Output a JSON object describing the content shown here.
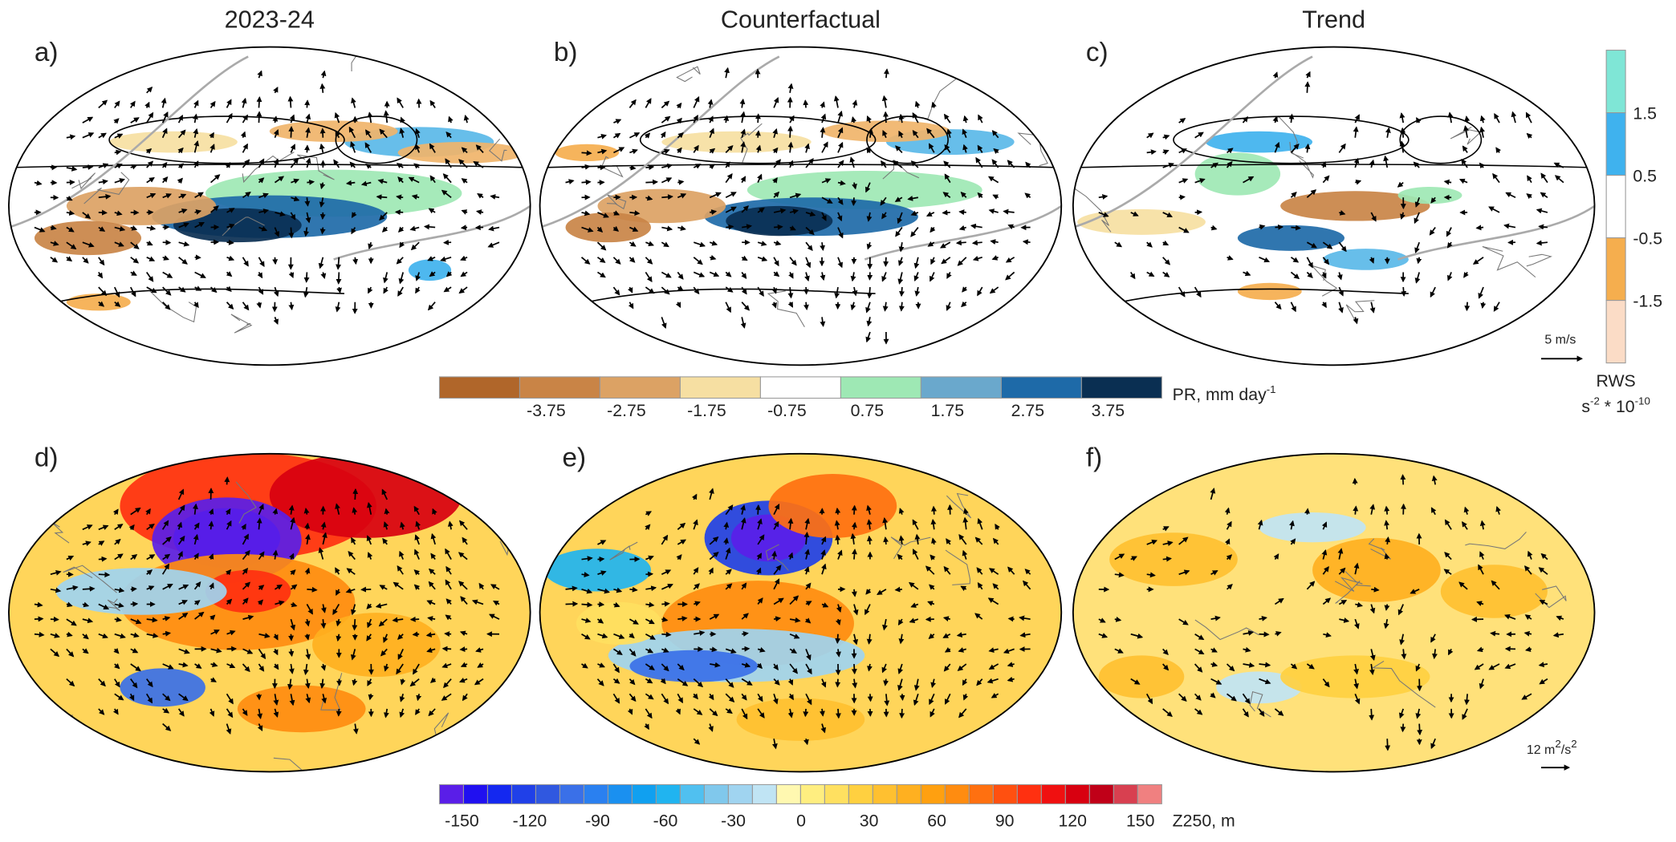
{
  "column_titles": [
    "2023-24",
    "Counterfactual",
    "Trend"
  ],
  "panels": [
    {
      "label": "a)"
    },
    {
      "label": "b)"
    },
    {
      "label": "c)"
    },
    {
      "label": "d)"
    },
    {
      "label": "e)"
    },
    {
      "label": "f)"
    }
  ],
  "pr_colorbar": {
    "label": "PR, mm day",
    "label_sup": "-1",
    "ticks": [
      -3.75,
      -2.75,
      -1.75,
      -0.75,
      0.75,
      1.75,
      2.75,
      3.75
    ],
    "colors": [
      "#b0662a",
      "#c98446",
      "#dca264",
      "#f6dfa2",
      "#ffffff",
      "#9ee8b4",
      "#6aa8cc",
      "#1e6aa8",
      "#0a2f52"
    ]
  },
  "rws_colorbar": {
    "title": "RWS",
    "units": "s",
    "units_sup1": "-2",
    "units_mid": " * 10",
    "units_sup2": "-10",
    "ticks": [
      1.5,
      0.5,
      -0.5,
      -1.5
    ],
    "colors": [
      "#7fe6d6",
      "#3fb2ee",
      "#ffffff",
      "#f5ae4e",
      "#fbdcc6"
    ]
  },
  "z250_colorbar": {
    "label": "Z250, m",
    "ticks": [
      -150,
      -120,
      -90,
      -60,
      -30,
      0,
      30,
      60,
      90,
      120,
      150
    ],
    "colors": [
      "#5a1ee8",
      "#2010f0",
      "#1428f0",
      "#2040e8",
      "#3058e0",
      "#3a70e8",
      "#2a80f0",
      "#1a90f0",
      "#10a0f0",
      "#20b4f0",
      "#50c0f0",
      "#80c8ec",
      "#a0d4f0",
      "#c0e4f4",
      "#fff8b0",
      "#ffee80",
      "#ffe060",
      "#ffd040",
      "#ffc030",
      "#ffb020",
      "#ffa010",
      "#ff8c10",
      "#ff7010",
      "#ff5010",
      "#ff3010",
      "#f01010",
      "#d80010",
      "#c00018",
      "#d84050",
      "#f08080"
    ]
  },
  "reference_vectors": {
    "top": "5 m/s",
    "bottom": "12 m",
    "bottom_sup1": "2",
    "bottom_mid": "/s",
    "bottom_sup2": "2"
  }
}
